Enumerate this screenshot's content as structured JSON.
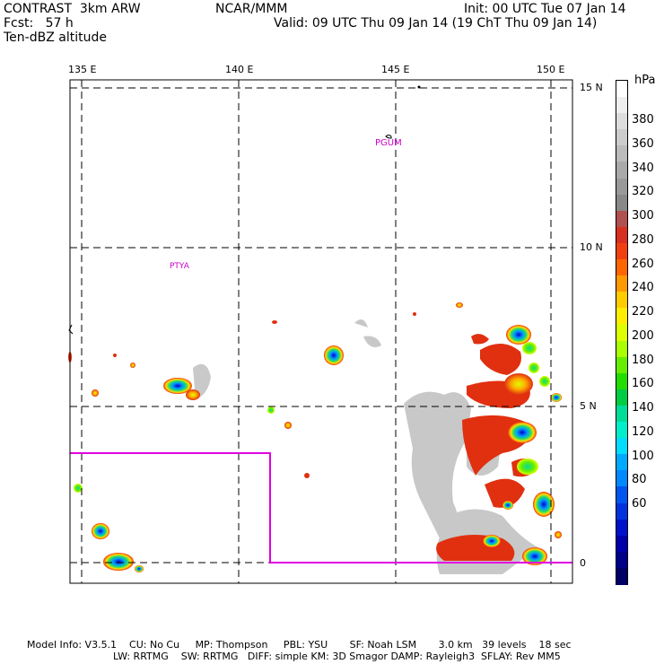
{
  "header": {
    "line1_left": "CONTRAST  3km ARW",
    "line1_center": "NCAR/MMM",
    "line1_right": "Init: 00 UTC Tue 07 Jan 14",
    "line2_left": "Fcst:   57 h",
    "line2_right": "Valid: 09 UTC Thu 09 Jan 14 (19 ChT Thu 09 Jan 14)",
    "line3_left": "Ten-dBZ altitude"
  },
  "map": {
    "lon_labels": [
      "135 E",
      "140 E",
      "145 E",
      "150 E"
    ],
    "lat_labels": [
      "15 N",
      "10 N",
      "5 N",
      "0"
    ],
    "station_labels": [
      "PGUM",
      "PTYA"
    ],
    "boundary_color": "#e000e0"
  },
  "colorbar": {
    "unit": "hPa",
    "labels": [
      "380",
      "360",
      "340",
      "320",
      "300",
      "280",
      "260",
      "240",
      "220",
      "200",
      "180",
      "160",
      "140",
      "120",
      "100",
      "80",
      "60"
    ],
    "colors": [
      "#ffffff",
      "#eeeeee",
      "#dddddd",
      "#cccccc",
      "#bbbbbb",
      "#aaaaaa",
      "#999999",
      "#888888",
      "#b05050",
      "#d83020",
      "#f04010",
      "#ff6600",
      "#ff9900",
      "#ffcc00",
      "#ffee00",
      "#ddff00",
      "#aaff00",
      "#66ee00",
      "#22dd00",
      "#00cc44",
      "#00dd99",
      "#00eecc",
      "#00ddff",
      "#00aaff",
      "#0088ff",
      "#0055ee",
      "#0033dd",
      "#0011cc",
      "#0000aa",
      "#000088",
      "#000066"
    ]
  },
  "footer": {
    "line1": "Model Info: V3.5.1    CU: No Cu     MP: Thompson     PBL: YSU       SF: Noah LSM       3.0 km   39 levels    18 sec",
    "line2": "LW: RRTMG    SW: RRTMG   DIFF: simple KM: 3D Smagor DAMP: Rayleigh3  SFLAY: Rev MM5"
  }
}
